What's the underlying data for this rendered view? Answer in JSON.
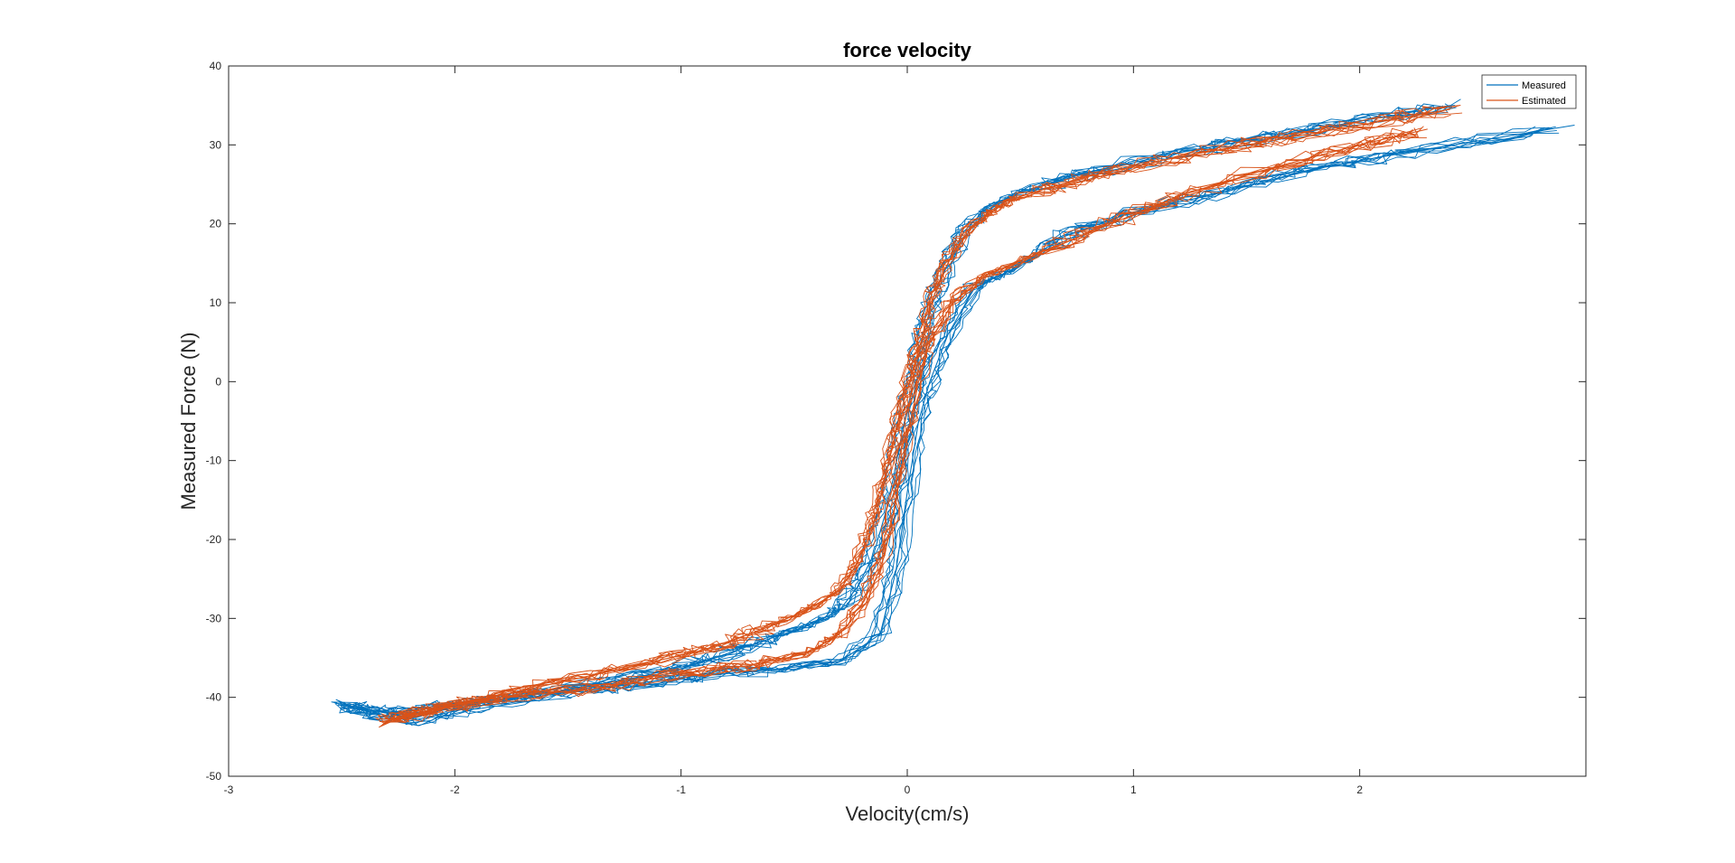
{
  "chart_data": {
    "type": "line",
    "title": "force velocity",
    "xlabel": "Velocity(cm/s)",
    "ylabel": "Measured Force (N)",
    "xlim": [
      -3,
      3
    ],
    "ylim": [
      -50,
      40
    ],
    "xticks": [
      -3,
      -2,
      -1,
      0,
      1,
      2
    ],
    "yticks": [
      -50,
      -40,
      -30,
      -20,
      -10,
      0,
      10,
      20,
      30,
      40
    ],
    "grid": false,
    "legend_position": "top-right",
    "series": [
      {
        "name": "Measured",
        "color": "#0072BD",
        "x": [
          2.4,
          2.0,
          1.6,
          1.2,
          0.8,
          0.5,
          0.35,
          0.25,
          0.18,
          0.12,
          0.08,
          0.05,
          0.02,
          -0.02,
          -0.06,
          -0.1,
          -0.15,
          -0.22,
          -0.3,
          -0.45,
          -0.65,
          -0.9,
          -1.2,
          -1.6,
          -2.0,
          -2.3,
          -2.5,
          -2.2,
          -1.8,
          -1.4,
          -1.0,
          -0.6,
          -0.3,
          -0.12,
          -0.05,
          0.0,
          0.05,
          0.1,
          0.18,
          0.3,
          0.45,
          0.7,
          1.0,
          1.4,
          1.8,
          2.2,
          2.95
        ],
        "y": [
          35,
          33,
          31,
          29,
          26.5,
          24,
          22,
          19,
          15,
          11,
          7,
          3,
          -1,
          -6,
          -12,
          -17,
          -22,
          -26,
          -29,
          -31,
          -33,
          -35.5,
          -37.5,
          -39.5,
          -41,
          -42,
          -41,
          -43,
          -40.5,
          -39,
          -37.5,
          -36.5,
          -35.5,
          -32,
          -24,
          -14,
          -5,
          0,
          6,
          12,
          14,
          18.5,
          21.5,
          24,
          27,
          29,
          32.5
        ]
      },
      {
        "name": "Estimated",
        "color": "#D95319",
        "x": [
          2.4,
          2.0,
          1.6,
          1.2,
          0.8,
          0.5,
          0.4,
          0.3,
          0.22,
          0.16,
          0.12,
          0.08,
          0.04,
          0.0,
          -0.04,
          -0.08,
          -0.12,
          -0.16,
          -0.22,
          -0.3,
          -0.45,
          -0.65,
          -0.9,
          -1.2,
          -1.6,
          -2.0,
          -2.3,
          -2.1,
          -1.8,
          -1.4,
          -1.0,
          -0.7,
          -0.45,
          -0.3,
          -0.18,
          -0.1,
          -0.05,
          0.0,
          0.05,
          0.1,
          0.2,
          0.35,
          0.6,
          0.9,
          1.2,
          1.6,
          2.0,
          2.3
        ],
        "y": [
          34.5,
          32.5,
          30.5,
          28.5,
          26,
          23.5,
          22,
          20,
          17,
          14,
          11,
          7,
          3,
          -1,
          -5,
          -10,
          -15,
          -19,
          -23,
          -26.5,
          -29,
          -31.5,
          -34,
          -36,
          -38.5,
          -41,
          -43,
          -41.5,
          -40,
          -39,
          -37,
          -36,
          -34.5,
          -32,
          -28,
          -22,
          -15,
          -7,
          0,
          5,
          10,
          13.5,
          16.5,
          20,
          23.5,
          27,
          30,
          32
        ]
      }
    ]
  }
}
